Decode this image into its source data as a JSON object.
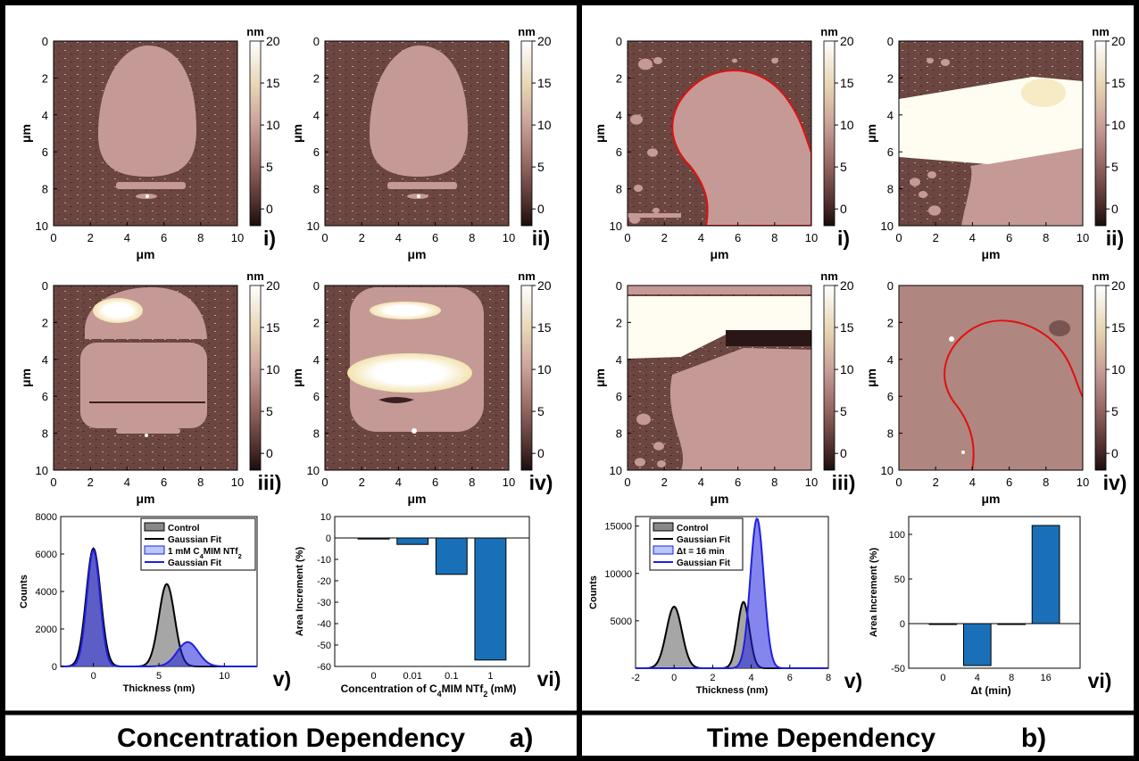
{
  "colors": {
    "afm_dark": "#2c1a1a",
    "afm_substrate": "#6b4540",
    "afm_flake": "#c59a96",
    "afm_bright": "#fffdf2",
    "afm_gold": "#f2e3b0",
    "outline_red": "#e01010",
    "hist_blue": "#2020e0",
    "bar_blue": "#1a70b8",
    "control_gray": "#555555"
  },
  "panels": {
    "a": {
      "caption": "Concentration Dependency",
      "letter": "a)",
      "maps": [
        {
          "label": "i)"
        },
        {
          "label": "ii)"
        },
        {
          "label": "iii)"
        },
        {
          "label": "iv)"
        }
      ]
    },
    "b": {
      "caption": "Time Dependency",
      "letter": "b)",
      "maps": [
        {
          "label": "i)"
        },
        {
          "label": "ii)"
        },
        {
          "label": "iii)"
        },
        {
          "label": "iv)"
        }
      ]
    }
  },
  "map_axes": {
    "xlabel": "μm",
    "ylabel": "μm",
    "ticks": [
      "0",
      "2",
      "4",
      "6",
      "8",
      "10"
    ],
    "colorbar_unit": "nm",
    "colorbar_ticks": [
      "20",
      "15",
      "10",
      "5",
      "0"
    ]
  },
  "chart_data": [
    {
      "id": "a-v",
      "type": "area",
      "panel_label": "v)",
      "xlabel": "Thickness (nm)",
      "ylabel": "Counts",
      "xlim": [
        -2.5,
        12.5
      ],
      "ylim": [
        0,
        8000
      ],
      "xticks": [
        0,
        5,
        10
      ],
      "yticks": [
        0,
        2000,
        4000,
        6000,
        8000
      ],
      "legend": [
        "Control",
        "Gaussian Fit",
        "1 mM C4MIM NTf2",
        "Gaussian Fit"
      ],
      "series": [
        {
          "name": "Control",
          "peaks": [
            {
              "mu": 0,
              "amp": 6300,
              "sigma": 0.55
            },
            {
              "mu": 5.6,
              "amp": 4400,
              "sigma": 0.6
            }
          ]
        },
        {
          "name": "1 mM C4MIM NTf2",
          "peaks": [
            {
              "mu": 0,
              "amp": 6200,
              "sigma": 0.5
            },
            {
              "mu": 7.2,
              "amp": 1300,
              "sigma": 0.8
            }
          ]
        }
      ]
    },
    {
      "id": "a-vi",
      "type": "bar",
      "panel_label": "vi)",
      "xlabel": "Concentration of C4MIM NTf2 (mM)",
      "ylabel": "Area Increment (%)",
      "categories": [
        "0",
        "0.01",
        "0.1",
        "1"
      ],
      "values": [
        -0.5,
        -3,
        -17,
        -57
      ],
      "ylim": [
        -60,
        10
      ],
      "yticks": [
        10,
        0,
        -10,
        -20,
        -30,
        -40,
        -50,
        -60
      ]
    },
    {
      "id": "b-v",
      "type": "area",
      "panel_label": "v)",
      "xlabel": "Thickness (nm)",
      "ylabel": "Counts",
      "xlim": [
        -2,
        8
      ],
      "ylim": [
        0,
        16000
      ],
      "xticks": [
        -2,
        0,
        2,
        4,
        6,
        8
      ],
      "yticks": [
        5000,
        10000,
        15000
      ],
      "legend": [
        "Control",
        "Gaussian Fit",
        "Δt = 16 min",
        "Gaussian Fit"
      ],
      "series": [
        {
          "name": "Control",
          "peaks": [
            {
              "mu": 0,
              "amp": 6500,
              "sigma": 0.4
            },
            {
              "mu": 3.6,
              "amp": 7000,
              "sigma": 0.3
            }
          ]
        },
        {
          "name": "Δt = 16 min",
          "peaks": [
            {
              "mu": 4.3,
              "amp": 15800,
              "sigma": 0.35
            }
          ]
        }
      ]
    },
    {
      "id": "b-vi",
      "type": "bar",
      "panel_label": "vi)",
      "xlabel": "Δt (min)",
      "ylabel": "Area Increment (%)",
      "categories": [
        "0",
        "4",
        "8",
        "16"
      ],
      "values": [
        0,
        -47,
        0,
        110
      ],
      "ylim": [
        -50,
        120
      ],
      "yticks": [
        100,
        50,
        0,
        -50
      ]
    }
  ]
}
